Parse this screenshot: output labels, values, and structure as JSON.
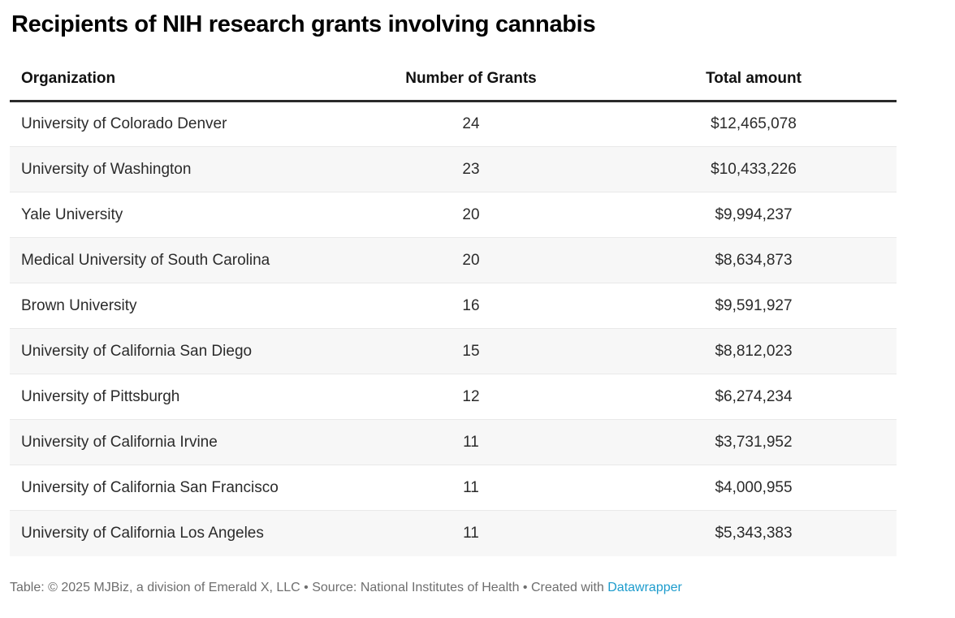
{
  "title": "Recipients of NIH research grants involving cannabis",
  "chart_data": {
    "type": "table",
    "title": "Recipients of NIH research grants involving cannabis",
    "columns": [
      {
        "label": "Organization",
        "align": "left"
      },
      {
        "label": "Number of Grants",
        "align": "center"
      },
      {
        "label": "Total amount",
        "align": "center"
      }
    ],
    "rows": [
      {
        "organization": "University of Colorado Denver",
        "grants": 24,
        "amount": "$12,465,078"
      },
      {
        "organization": "University of Washington",
        "grants": 23,
        "amount": "$10,433,226"
      },
      {
        "organization": "Yale University",
        "grants": 20,
        "amount": "$9,994,237"
      },
      {
        "organization": "Medical University of South Carolina",
        "grants": 20,
        "amount": "$8,634,873"
      },
      {
        "organization": "Brown University",
        "grants": 16,
        "amount": "$9,591,927"
      },
      {
        "organization": "University of California San Diego",
        "grants": 15,
        "amount": "$8,812,023"
      },
      {
        "organization": "University of Pittsburgh",
        "grants": 12,
        "amount": "$6,274,234"
      },
      {
        "organization": "University of California Irvine",
        "grants": 11,
        "amount": "$3,731,952"
      },
      {
        "organization": "University of California San Francisco",
        "grants": 11,
        "amount": "$4,000,955"
      },
      {
        "organization": "University of California Los Angeles",
        "grants": 11,
        "amount": "$5,343,383"
      }
    ],
    "zebra_striping": true,
    "legend_position": "none",
    "grid": "horizontal-row-dividers"
  },
  "footer": {
    "prefix": "Table: © 2025 MJBiz, a division of Emerald X, LLC • Source: National Institutes of Health • Created with ",
    "link_label": "Datawrapper"
  },
  "colors": {
    "title_text": "#000000",
    "header_text": "#111111",
    "body_text": "#2b2b2b",
    "header_border": "#2b2b2b",
    "row_divider": "#e9e9e9",
    "row_stripe": "#f7f7f7",
    "footer_text": "#6e6e6e",
    "link": "#1d9ccd",
    "background": "#ffffff"
  }
}
